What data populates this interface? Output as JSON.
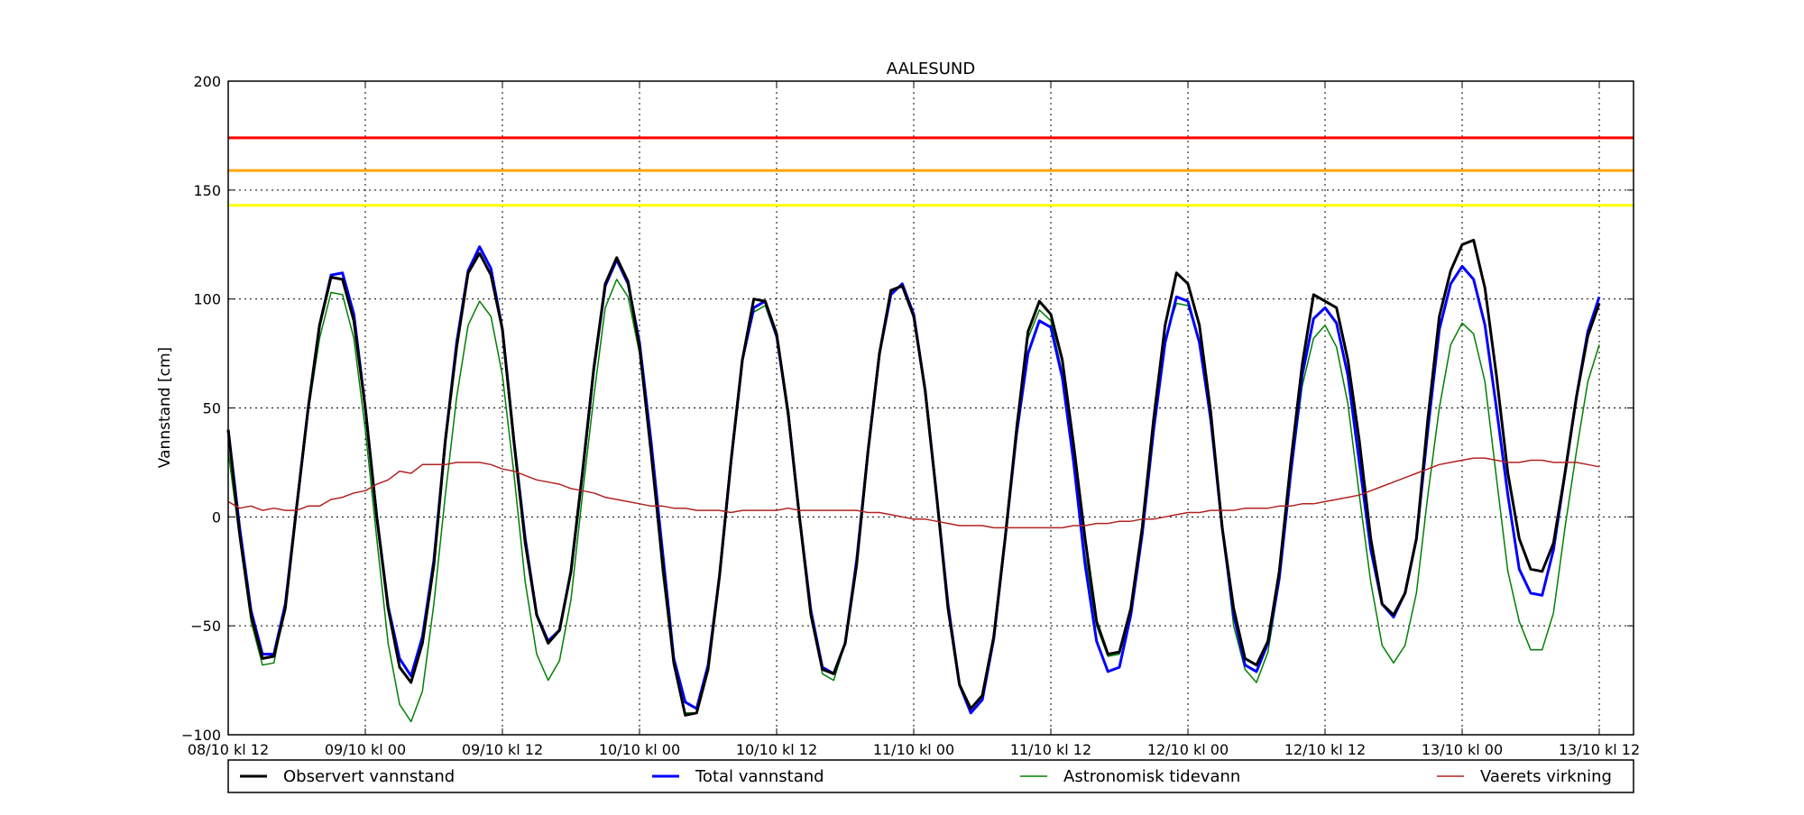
{
  "chart_data": {
    "type": "line",
    "title": "AALESUND",
    "ylabel": "Vannstand [cm]",
    "xlabel": "",
    "ylim": [
      -100,
      200
    ],
    "xlim": [
      "08/10 kl 12",
      "13/10 kl 15"
    ],
    "x_step_hours": 1,
    "x_start": "08/10 kl 12",
    "grid": true,
    "legend_position": "bottom",
    "x_ticks": [
      "08/10 kl 12",
      "09/10 kl 00",
      "09/10 kl 12",
      "10/10 kl 00",
      "10/10 kl 12",
      "11/10 kl 00",
      "11/10 kl 12",
      "12/10 kl 00",
      "12/10 kl 12",
      "13/10 kl 00",
      "13/10 kl 12"
    ],
    "y_ticks": [
      "−100",
      "−50",
      "0",
      "50",
      "100",
      "150",
      "200"
    ],
    "threshold_lines": [
      {
        "value": 174,
        "color": "#ff0000"
      },
      {
        "value": 159,
        "color": "#ffa500"
      },
      {
        "value": 143,
        "color": "#ffff00"
      }
    ],
    "series": [
      {
        "name": "Astronomisk tidevann",
        "color": "#008000",
        "width": 1.5,
        "values": [
          30,
          -10,
          -48,
          -68,
          -67,
          -40,
          5,
          48,
          82,
          103,
          102,
          82,
          40,
          -10,
          -58,
          -86,
          -94,
          -80,
          -40,
          10,
          55,
          88,
          99,
          92,
          65,
          20,
          -30,
          -63,
          -75,
          -66,
          -38,
          10,
          55,
          96,
          109,
          101,
          75,
          30,
          -25,
          -68,
          -90,
          -90,
          -68,
          -26,
          25,
          72,
          94,
          97,
          82,
          45,
          0,
          -43,
          -72,
          -75,
          -58,
          -20,
          30,
          73,
          104,
          106,
          92,
          58,
          10,
          -40,
          -76,
          -88,
          -82,
          -55,
          -10,
          43,
          82,
          95,
          90,
          66,
          25,
          -18,
          -50,
          -64,
          -63,
          -45,
          -5,
          45,
          82,
          98,
          97,
          80,
          42,
          -5,
          -50,
          -70,
          -76,
          -62,
          -30,
          18,
          60,
          82,
          88,
          78,
          52,
          10,
          -30,
          -59,
          -67,
          -59,
          -35,
          10,
          50,
          79,
          89,
          84,
          62,
          18,
          -25,
          -48,
          -61,
          -61,
          -44,
          -5,
          30,
          62,
          79
        ]
      },
      {
        "name": "Total vannstand",
        "color": "#0000ff",
        "width": 3,
        "values": [
          40,
          -5,
          -43,
          -63,
          -63,
          -40,
          5,
          50,
          88,
          111,
          112,
          93,
          50,
          0,
          -41,
          -65,
          -73,
          -55,
          -20,
          35,
          80,
          113,
          124,
          114,
          86,
          35,
          -10,
          -45,
          -57,
          -52,
          -25,
          20,
          68,
          106,
          118,
          107,
          80,
          35,
          -15,
          -65,
          -85,
          -88,
          -68,
          -27,
          25,
          72,
          96,
          99,
          83,
          48,
          0,
          -43,
          -69,
          -72,
          -58,
          -20,
          30,
          75,
          102,
          107,
          93,
          58,
          10,
          -40,
          -77,
          -90,
          -84,
          -56,
          -10,
          38,
          75,
          90,
          87,
          64,
          25,
          -22,
          -57,
          -71,
          -69,
          -45,
          -8,
          40,
          80,
          101,
          99,
          80,
          45,
          -5,
          -45,
          -68,
          -71,
          -58,
          -28,
          20,
          65,
          91,
          96,
          89,
          65,
          25,
          -15,
          -40,
          -46,
          -35,
          -10,
          40,
          86,
          107,
          115,
          109,
          88,
          50,
          10,
          -24,
          -35,
          -36,
          -15,
          20,
          55,
          85,
          101
        ]
      },
      {
        "name": "Observert vannstand",
        "color": "#000000",
        "width": 3,
        "values": [
          40,
          -8,
          -45,
          -65,
          -64,
          -42,
          5,
          50,
          88,
          110,
          109,
          90,
          50,
          0,
          -42,
          -69,
          -76,
          -58,
          -22,
          35,
          78,
          112,
          121,
          111,
          86,
          35,
          -12,
          -45,
          -58,
          -52,
          -25,
          20,
          68,
          107,
          119,
          108,
          78,
          30,
          -20,
          -67,
          -91,
          -90,
          -70,
          -27,
          25,
          72,
          100,
          99,
          84,
          48,
          0,
          -45,
          -70,
          -72,
          -58,
          -22,
          30,
          75,
          104,
          106,
          92,
          58,
          10,
          -42,
          -77,
          -88,
          -82,
          -55,
          -10,
          40,
          85,
          99,
          93,
          72,
          33,
          -10,
          -48,
          -63,
          -62,
          -42,
          -5,
          45,
          88,
          112,
          107,
          88,
          48,
          -5,
          -42,
          -65,
          -68,
          -57,
          -25,
          25,
          70,
          102,
          99,
          96,
          72,
          35,
          -10,
          -40,
          -45,
          -35,
          -10,
          45,
          92,
          113,
          125,
          127,
          105,
          65,
          20,
          -10,
          -24,
          -25,
          -12,
          20,
          55,
          83,
          98
        ]
      },
      {
        "name": "Vaerets virkning",
        "color": "#b22222",
        "width": 1.5,
        "values": [
          7,
          4,
          5,
          3,
          4,
          3,
          3,
          5,
          5,
          8,
          9,
          11,
          12,
          15,
          17,
          21,
          20,
          24,
          24,
          24,
          25,
          25,
          25,
          24,
          22,
          21,
          19,
          17,
          16,
          15,
          13,
          12,
          11,
          9,
          8,
          7,
          6,
          5,
          5,
          4,
          4,
          3,
          3,
          3,
          2,
          3,
          3,
          3,
          3,
          4,
          3,
          3,
          3,
          3,
          3,
          3,
          2,
          2,
          1,
          0,
          -1,
          -1,
          -2,
          -3,
          -4,
          -4,
          -4,
          -5,
          -5,
          -5,
          -5,
          -5,
          -5,
          -5,
          -4,
          -4,
          -3,
          -3,
          -2,
          -2,
          -1,
          -1,
          0,
          1,
          2,
          2,
          3,
          3,
          3,
          4,
          4,
          4,
          5,
          5,
          6,
          6,
          7,
          8,
          9,
          10,
          12,
          14,
          16,
          18,
          20,
          22,
          24,
          25,
          26,
          27,
          27,
          26,
          25,
          25,
          26,
          26,
          25,
          25,
          25,
          24,
          23
        ]
      }
    ],
    "legend": [
      {
        "label": "Observert vannstand",
        "color": "#000000",
        "width": 3
      },
      {
        "label": "Total vannstand",
        "color": "#0000ff",
        "width": 3
      },
      {
        "label": "Astronomisk tidevann",
        "color": "#008000",
        "width": 1.5
      },
      {
        "label": "Vaerets virkning",
        "color": "#b22222",
        "width": 1.5
      }
    ]
  }
}
